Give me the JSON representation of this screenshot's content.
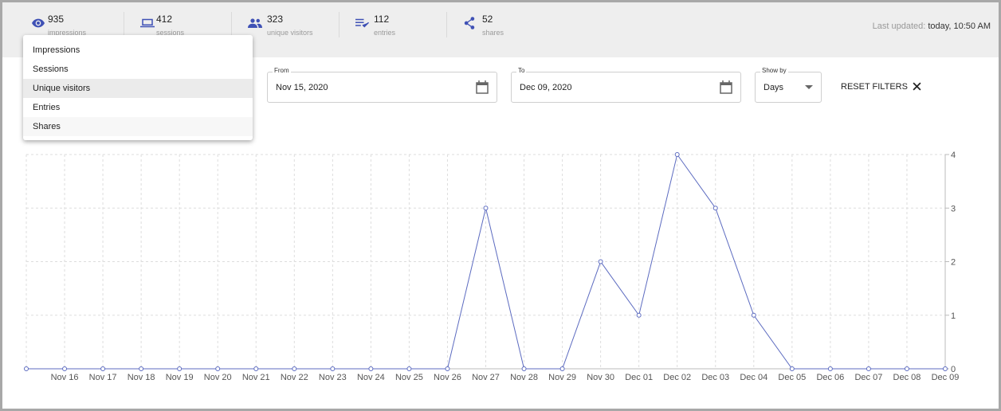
{
  "header": {
    "stats": [
      {
        "value": 935,
        "label": "impressions"
      },
      {
        "value": 412,
        "label": "sessions"
      },
      {
        "value": 323,
        "label": "unique visitors"
      },
      {
        "value": 112,
        "label": "entries"
      },
      {
        "value": 52,
        "label": "shares"
      }
    ],
    "last_updated_label": "Last updated:",
    "last_updated_value": "today, 10:50 AM"
  },
  "menu": {
    "items": [
      "Impressions",
      "Sessions",
      "Unique visitors",
      "Entries",
      "Shares"
    ]
  },
  "filters": {
    "from_label": "From",
    "from_value": "Nov 15, 2020",
    "to_label": "To",
    "to_value": "Dec 09, 2020",
    "show_by_label": "Show by",
    "show_by_value": "Days",
    "reset": "RESET FILTERS"
  },
  "chart_data": {
    "type": "line",
    "categories": [
      null,
      "Nov 16",
      "Nov 17",
      "Nov 18",
      "Nov 19",
      "Nov 20",
      "Nov 21",
      "Nov 22",
      "Nov 23",
      "Nov 24",
      "Nov 25",
      "Nov 26",
      "Nov 27",
      "Nov 28",
      "Nov 29",
      "Nov 30",
      "Dec 01",
      "Dec 02",
      "Dec 03",
      "Dec 04",
      "Dec 05",
      "Dec 06",
      "Dec 07",
      "Dec 08",
      "Dec 09"
    ],
    "series": [
      {
        "color": "#5c6bc0",
        "values": [
          0,
          0,
          0,
          0,
          0,
          0,
          0,
          0,
          0,
          0,
          0,
          0,
          3,
          0,
          0,
          2,
          1,
          4,
          3,
          1,
          0,
          0,
          0,
          0,
          0
        ]
      }
    ],
    "ylim": [
      0,
      4
    ],
    "yticks": [
      0,
      1,
      2,
      3,
      4
    ],
    "grid": true
  }
}
